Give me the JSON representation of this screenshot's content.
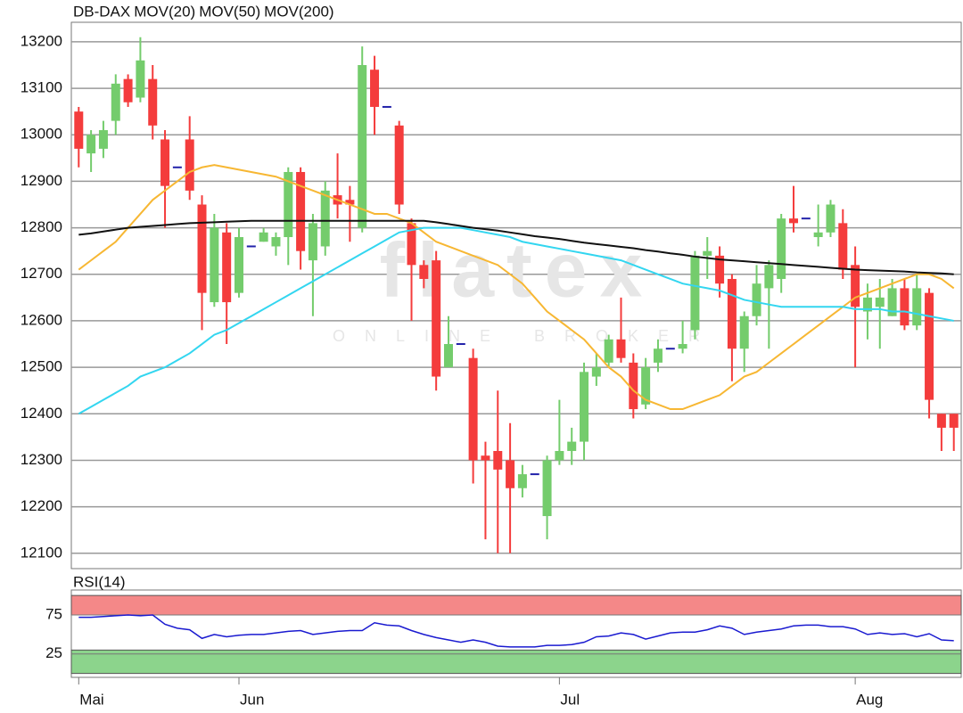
{
  "chart_data": [
    {
      "type": "candlestick",
      "name": "DB-DAX",
      "name_color": "#f04a3a",
      "up_color": "#74cc6c",
      "down_color": "#f43c3c",
      "doji_color": "#2222aa",
      "open": [
        13050,
        12960,
        12970,
        13030,
        13120,
        13080,
        13120,
        12990,
        12930,
        12990,
        12850,
        12640,
        12790,
        12660,
        12760,
        12770,
        12760,
        12780,
        12920,
        12730,
        12760,
        12870,
        12860,
        12800,
        13140,
        13060,
        13020,
        12810,
        12720,
        12730,
        12500,
        12550,
        12520,
        12310,
        12320,
        12300,
        12240,
        12270,
        12180,
        12300,
        12320,
        12340,
        12480,
        12510,
        12560,
        12510,
        12420,
        12510,
        12540,
        12540,
        12580,
        12740,
        12740,
        12690,
        12540,
        12610,
        12670,
        12690,
        12820,
        12820,
        12780,
        12790,
        12810,
        12720,
        12620,
        12630,
        12610,
        12670,
        12590,
        12660,
        12400,
        12400
      ],
      "high": [
        13060,
        13010,
        13030,
        13130,
        13130,
        13210,
        13150,
        13010,
        12990,
        13040,
        12870,
        12830,
        12810,
        12800,
        12770,
        12800,
        12790,
        12930,
        12930,
        12830,
        12900,
        12960,
        12890,
        13190,
        13170,
        13060,
        13030,
        12820,
        12730,
        12750,
        12610,
        12550,
        12540,
        12340,
        12450,
        12380,
        12290,
        12270,
        12310,
        12430,
        12370,
        12510,
        12530,
        12570,
        12650,
        12530,
        12520,
        12560,
        12540,
        12600,
        12750,
        12780,
        12760,
        12700,
        12620,
        12720,
        12730,
        12830,
        12890,
        12820,
        12850,
        12860,
        12840,
        12760,
        12680,
        12690,
        12690,
        12690,
        12700,
        12670,
        12400,
        12400
      ],
      "low": [
        12930,
        12920,
        12950,
        13000,
        13060,
        13070,
        12990,
        12800,
        12880,
        12860,
        12580,
        12630,
        12550,
        12650,
        12750,
        12770,
        12740,
        12720,
        12710,
        12610,
        12740,
        12820,
        12770,
        12790,
        13000,
        13060,
        12830,
        12600,
        12670,
        12450,
        12500,
        12550,
        12250,
        12130,
        12100,
        12100,
        12220,
        12270,
        12130,
        12290,
        12290,
        12300,
        12460,
        12500,
        12510,
        12390,
        12410,
        12490,
        12540,
        12530,
        12560,
        12690,
        12650,
        12470,
        12490,
        12590,
        12540,
        12660,
        12790,
        12820,
        12760,
        12780,
        12690,
        12500,
        12560,
        12540,
        12610,
        12580,
        12580,
        12390,
        12320,
        12320
      ],
      "close": [
        12970,
        13000,
        13010,
        13110,
        13070,
        13160,
        13020,
        12890,
        12930,
        12880,
        12660,
        12800,
        12640,
        12780,
        12760,
        12790,
        12780,
        12920,
        12750,
        12810,
        12880,
        12850,
        12850,
        13150,
        13060,
        13060,
        12850,
        12720,
        12690,
        12480,
        12550,
        12550,
        12300,
        12300,
        12280,
        12240,
        12270,
        12270,
        12300,
        12320,
        12340,
        12490,
        12500,
        12560,
        12520,
        12410,
        12500,
        12540,
        12540,
        12550,
        12740,
        12750,
        12680,
        12540,
        12610,
        12680,
        12720,
        12820,
        12810,
        12820,
        12790,
        12850,
        12710,
        12630,
        12650,
        12650,
        12670,
        12590,
        12670,
        12430,
        12370,
        12370
      ],
      "lines": [
        {
          "name": "MOV(20)",
          "color": "#f7b733",
          "values": [
            12710,
            12730,
            12750,
            12770,
            12800,
            12830,
            12860,
            12880,
            12900,
            12920,
            12930,
            12935,
            12930,
            12925,
            12920,
            12915,
            12910,
            12900,
            12890,
            12880,
            12870,
            12860,
            12850,
            12840,
            12830,
            12830,
            12820,
            12810,
            12790,
            12770,
            12760,
            12750,
            12740,
            12730,
            12720,
            12700,
            12680,
            12650,
            12620,
            12600,
            12580,
            12560,
            12530,
            12500,
            12480,
            12450,
            12430,
            12420,
            12410,
            12410,
            12420,
            12430,
            12440,
            12460,
            12480,
            12490,
            12510,
            12530,
            12550,
            12570,
            12590,
            12610,
            12630,
            12650,
            12660,
            12670,
            12680,
            12690,
            12700,
            12700,
            12690,
            12670
          ]
        },
        {
          "name": "MOV(50)",
          "color": "#33d6f0",
          "values": [
            12400,
            12415,
            12430,
            12445,
            12460,
            12480,
            12490,
            12500,
            12515,
            12530,
            12550,
            12570,
            12580,
            12595,
            12610,
            12625,
            12640,
            12655,
            12670,
            12685,
            12700,
            12715,
            12730,
            12745,
            12760,
            12775,
            12790,
            12795,
            12800,
            12800,
            12800,
            12800,
            12795,
            12790,
            12785,
            12780,
            12770,
            12765,
            12760,
            12755,
            12750,
            12745,
            12740,
            12735,
            12730,
            12720,
            12710,
            12700,
            12690,
            12680,
            12675,
            12670,
            12665,
            12655,
            12645,
            12640,
            12635,
            12630,
            12630,
            12630,
            12630,
            12630,
            12630,
            12625,
            12625,
            12625,
            12620,
            12620,
            12615,
            12610,
            12605,
            12600
          ]
        },
        {
          "name": "MOV(200)",
          "color": "#111111",
          "values": [
            12785,
            12788,
            12792,
            12796,
            12800,
            12802,
            12804,
            12806,
            12808,
            12810,
            12811,
            12812,
            12813,
            12814,
            12815,
            12815,
            12815,
            12815,
            12815,
            12815,
            12815,
            12815,
            12815,
            12815,
            12815,
            12815,
            12815,
            12815,
            12815,
            12812,
            12808,
            12804,
            12800,
            12797,
            12794,
            12790,
            12786,
            12782,
            12779,
            12776,
            12772,
            12768,
            12765,
            12762,
            12759,
            12756,
            12752,
            12749,
            12745,
            12742,
            12738,
            12735,
            12732,
            12730,
            12728,
            12726,
            12724,
            12722,
            12720,
            12718,
            12716,
            12714,
            12712,
            12710,
            12709,
            12708,
            12707,
            12706,
            12704,
            12703,
            12702,
            12700
          ]
        }
      ],
      "ylim": [
        12067,
        13242
      ],
      "yticks": [
        12100,
        12200,
        12300,
        12400,
        12500,
        12600,
        12700,
        12800,
        12900,
        13000,
        13100,
        13200
      ],
      "grid": true,
      "watermark": {
        "logo": "flatex",
        "tagline": "ONLINE BROKER"
      }
    },
    {
      "type": "line",
      "categories": [
        "Mai",
        null,
        null,
        null,
        null,
        null,
        null,
        null,
        null,
        null,
        null,
        null,
        null,
        "Jun",
        null,
        null,
        null,
        null,
        null,
        null,
        null,
        null,
        null,
        null,
        null,
        null,
        null,
        null,
        null,
        null,
        null,
        null,
        null,
        null,
        null,
        null,
        null,
        null,
        null,
        "Jul",
        null,
        null,
        null,
        null,
        null,
        null,
        null,
        null,
        null,
        null,
        null,
        null,
        null,
        null,
        null,
        null,
        null,
        null,
        null,
        null,
        null,
        null,
        null,
        "Aug",
        null,
        null,
        null,
        null,
        null,
        null,
        null,
        null
      ],
      "series": [
        {
          "name": "RSI(14)",
          "color": "#1a1ad0",
          "values": [
            72,
            72,
            73,
            74,
            75,
            74,
            75,
            63,
            58,
            56,
            45,
            50,
            47,
            49,
            50,
            50,
            52,
            54,
            55,
            50,
            52,
            54,
            55,
            55,
            65,
            62,
            61,
            55,
            50,
            46,
            43,
            40,
            43,
            40,
            35,
            34,
            34,
            34,
            36,
            36,
            37,
            40,
            47,
            48,
            52,
            50,
            44,
            48,
            52,
            53,
            53,
            56,
            61,
            58,
            50,
            53,
            55,
            57,
            61,
            62,
            62,
            60,
            60,
            57,
            50,
            52,
            50,
            51,
            47,
            51,
            43,
            42
          ]
        }
      ],
      "ylim": [
        -5,
        107
      ],
      "yticks": [
        25,
        75
      ],
      "bands": [
        {
          "from": 75,
          "to": 100,
          "color": "#f48888"
        },
        {
          "from": 0,
          "to": 30,
          "color": "#8cd48c"
        }
      ]
    }
  ]
}
